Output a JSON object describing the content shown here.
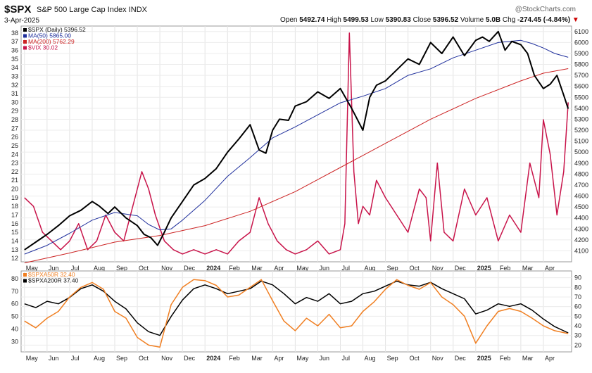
{
  "header": {
    "symbol": "$SPX",
    "name": "S&P 500 Large Cap Index",
    "exchange": "INDX",
    "date": "3-Apr-2025",
    "brand": "@StockCharts.com",
    "open_label": "Open",
    "open": "5492.74",
    "high_label": "High",
    "high": "5499.53",
    "low_label": "Low",
    "low": "5390.83",
    "close_label": "Close",
    "close": "5396.52",
    "volume_label": "Volume",
    "volume": "5.0B",
    "chg_label": "Chg",
    "chg": "-274.45 (-4.84%)",
    "down_arrow": "▼"
  },
  "chart_data": [
    {
      "type": "line",
      "panel": "price",
      "legend": [
        {
          "label": "$SPX (Daily) 5396.52",
          "color": "#000000"
        },
        {
          "label": "MA(50) 5865.00",
          "color": "#1f2f9c"
        },
        {
          "label": "MA(200) 5762.29",
          "color": "#cc2222"
        },
        {
          "label": "$VIX 30.02",
          "color": "#c8144a"
        }
      ],
      "x_tick_labels": [
        "May",
        "Jun",
        "Jul",
        "Aug",
        "Sep",
        "Oct",
        "Nov",
        "Dec",
        "2024",
        "Feb",
        "Mar",
        "Apr",
        "May",
        "Jun",
        "Jul",
        "Aug",
        "Sep",
        "Oct",
        "Nov",
        "Dec",
        "2025",
        "Feb",
        "Mar",
        "Apr"
      ],
      "x_range_months": [
        0,
        24
      ],
      "right_axis": {
        "range": [
          4000,
          6150
        ],
        "ticks": [
          4100,
          4200,
          4300,
          4400,
          4500,
          4600,
          4700,
          4800,
          4900,
          5000,
          5100,
          5200,
          5300,
          5400,
          5500,
          5600,
          5700,
          5800,
          5900,
          6000,
          6100
        ]
      },
      "left_axis": {
        "range": [
          11.6,
          38.8
        ],
        "ticks": [
          12,
          13,
          14,
          15,
          16,
          17,
          18,
          19,
          20,
          21,
          22,
          23,
          24,
          25,
          26,
          27,
          28,
          29,
          30,
          31,
          32,
          33,
          34,
          35,
          36,
          37,
          38
        ]
      },
      "series": [
        {
          "name": "$SPX",
          "axis": "right",
          "color": "#000000",
          "x": [
            0,
            0.5,
            1,
            1.5,
            2,
            2.5,
            3,
            3.3,
            3.7,
            4,
            4.5,
            5,
            5.3,
            5.6,
            5.9,
            6.2,
            6.5,
            7,
            7.5,
            8,
            8.5,
            9,
            9.5,
            10,
            10.4,
            10.7,
            11,
            11.3,
            11.7,
            12,
            12.5,
            13,
            13.5,
            14,
            14.5,
            15,
            15.3,
            15.6,
            16,
            16.5,
            17,
            17.5,
            18,
            18.5,
            19,
            19.5,
            20,
            20.3,
            20.6,
            21,
            21.3,
            21.6,
            22,
            22.3,
            22.6,
            23,
            23.3,
            23.6,
            23.9,
            24.1
          ],
          "y": [
            4110,
            4180,
            4250,
            4330,
            4420,
            4470,
            4550,
            4510,
            4440,
            4500,
            4400,
            4330,
            4250,
            4220,
            4150,
            4270,
            4400,
            4550,
            4700,
            4760,
            4850,
            5000,
            5120,
            5250,
            5020,
            4990,
            5200,
            5300,
            5290,
            5420,
            5460,
            5550,
            5490,
            5580,
            5400,
            5200,
            5500,
            5610,
            5650,
            5750,
            5850,
            5800,
            6000,
            5900,
            6050,
            5880,
            6020,
            6050,
            6010,
            6100,
            5930,
            6010,
            5980,
            5900,
            5700,
            5580,
            5620,
            5700,
            5520,
            5396
          ]
        },
        {
          "name": "MA(50)",
          "axis": "right",
          "color": "#1f2f9c",
          "x": [
            0,
            1,
            2,
            3,
            4,
            5,
            5.5,
            6,
            6.5,
            7,
            8,
            9,
            10,
            11,
            12,
            13,
            14,
            15,
            16,
            17,
            18,
            19,
            20,
            21,
            22,
            22.5,
            23,
            23.5,
            24.1
          ],
          "y": [
            4070,
            4150,
            4260,
            4380,
            4450,
            4420,
            4340,
            4290,
            4300,
            4380,
            4560,
            4780,
            4950,
            5130,
            5230,
            5340,
            5450,
            5510,
            5580,
            5700,
            5760,
            5860,
            5930,
            6000,
            6020,
            5990,
            5950,
            5900,
            5865
          ]
        },
        {
          "name": "MA(200)",
          "axis": "right",
          "color": "#cc2222",
          "x": [
            0,
            2,
            4,
            6,
            8,
            10,
            12,
            14,
            16,
            18,
            20,
            22,
            23,
            24.1
          ],
          "y": [
            3990,
            4080,
            4180,
            4240,
            4330,
            4460,
            4640,
            4860,
            5080,
            5300,
            5490,
            5650,
            5720,
            5762
          ]
        },
        {
          "name": "$VIX",
          "axis": "left",
          "color": "#c8144a",
          "x": [
            0,
            0.4,
            0.8,
            1.2,
            1.6,
            2,
            2.4,
            2.8,
            3.2,
            3.6,
            4,
            4.4,
            4.8,
            5.2,
            5.5,
            5.8,
            6.2,
            6.6,
            7,
            7.5,
            8,
            8.5,
            9,
            9.5,
            10,
            10.4,
            10.8,
            11.2,
            11.6,
            12,
            12.5,
            13,
            13.5,
            14,
            14.2,
            14.4,
            14.6,
            14.8,
            15,
            15.3,
            15.6,
            16,
            16.5,
            17,
            17.5,
            17.8,
            18,
            18.3,
            18.6,
            19,
            19.5,
            20,
            20.5,
            21,
            21.5,
            22,
            22.4,
            22.8,
            23,
            23.3,
            23.6,
            23.9,
            24.1
          ],
          "y": [
            19,
            18,
            15,
            14,
            13,
            14,
            16,
            13,
            14,
            17,
            15,
            14,
            18,
            22,
            20,
            17,
            14,
            13,
            12.5,
            13,
            12.5,
            13,
            12.5,
            14,
            15,
            19,
            16,
            14,
            13,
            12.5,
            13,
            14,
            12.5,
            13,
            16,
            38,
            22,
            16,
            18,
            17,
            21,
            19,
            17,
            15,
            20,
            19,
            14,
            23,
            15,
            14,
            20,
            17,
            19,
            14,
            17,
            15,
            23,
            19,
            28,
            24,
            17,
            22,
            30
          ]
        }
      ]
    },
    {
      "type": "line",
      "panel": "breadth",
      "legend": [
        {
          "label": "$SPXA50R 32.40",
          "color": "#f07f22"
        },
        {
          "label": "$SPXA200R 37.40",
          "color": "#000000"
        }
      ],
      "x_tick_labels": [
        "May",
        "Jun",
        "Jul",
        "Aug",
        "Sep",
        "Oct",
        "Nov",
        "Dec",
        "2024",
        "Feb",
        "Mar",
        "Apr",
        "May",
        "Jun",
        "Jul",
        "Aug",
        "Sep",
        "Oct",
        "Nov",
        "Dec",
        "2025",
        "Feb",
        "Mar",
        "Apr"
      ],
      "left_axis": {
        "range": [
          22,
          86
        ],
        "ticks": [
          30,
          40,
          50,
          60,
          70,
          80
        ]
      },
      "right_axis": {
        "range": [
          13,
          97
        ],
        "ticks": [
          20,
          30,
          40,
          50,
          60,
          70,
          80,
          90
        ]
      },
      "series": [
        {
          "name": "$SPXA50R",
          "axis": "right",
          "color": "#f07f22",
          "x": [
            0,
            0.5,
            1,
            1.5,
            2,
            2.5,
            3,
            3.5,
            4,
            4.5,
            5,
            5.5,
            6,
            6.5,
            7,
            7.5,
            8,
            8.5,
            9,
            9.5,
            10,
            10.5,
            11,
            11.5,
            12,
            12.5,
            13,
            13.5,
            14,
            14.5,
            15,
            15.5,
            16,
            16.5,
            17,
            17.5,
            18,
            18.5,
            19,
            19.5,
            20,
            20.5,
            21,
            21.5,
            22,
            22.5,
            23,
            23.5,
            24.1
          ],
          "y": [
            45,
            38,
            48,
            55,
            70,
            80,
            85,
            78,
            55,
            48,
            28,
            20,
            18,
            62,
            80,
            88,
            87,
            82,
            70,
            72,
            80,
            88,
            66,
            45,
            35,
            48,
            40,
            52,
            38,
            40,
            55,
            65,
            78,
            88,
            82,
            78,
            85,
            70,
            62,
            50,
            22,
            40,
            55,
            58,
            55,
            48,
            40,
            35,
            32
          ]
        },
        {
          "name": "$SPXA200R",
          "axis": "left",
          "color": "#000000",
          "x": [
            0,
            0.5,
            1,
            1.5,
            2,
            2.5,
            3,
            3.5,
            4,
            4.5,
            5,
            5.5,
            6,
            6.5,
            7,
            7.5,
            8,
            8.5,
            9,
            9.5,
            10,
            10.5,
            11,
            11.5,
            12,
            12.5,
            13,
            13.5,
            14,
            14.5,
            15,
            15.5,
            16,
            16.5,
            17,
            17.5,
            18,
            18.5,
            19,
            19.5,
            20,
            20.5,
            21,
            21.5,
            22,
            22.5,
            23,
            23.5,
            24.1
          ],
          "y": [
            60,
            57,
            62,
            60,
            65,
            72,
            75,
            70,
            62,
            56,
            45,
            38,
            35,
            50,
            63,
            72,
            75,
            72,
            68,
            70,
            72,
            78,
            75,
            68,
            60,
            65,
            62,
            68,
            60,
            62,
            68,
            70,
            74,
            78,
            75,
            74,
            77,
            72,
            68,
            64,
            52,
            55,
            60,
            58,
            60,
            55,
            48,
            42,
            37
          ]
        }
      ]
    }
  ]
}
